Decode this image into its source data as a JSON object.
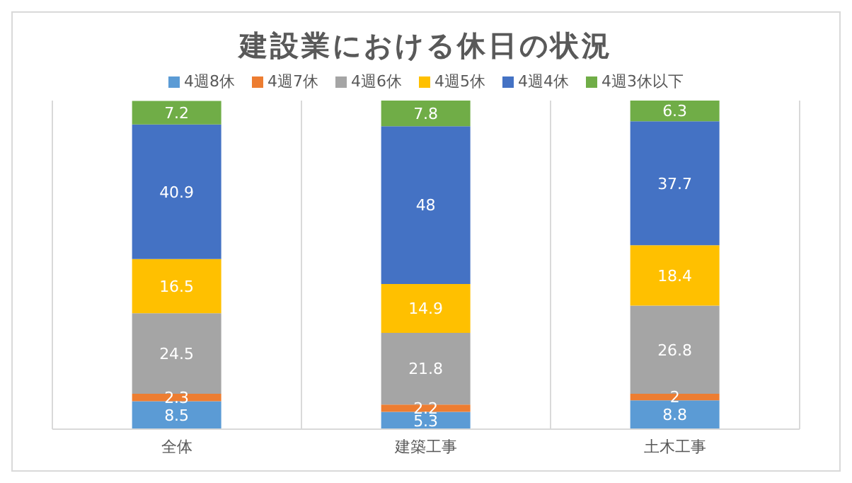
{
  "chart_data": {
    "type": "bar",
    "title": "建設業における休日の状況",
    "categories": [
      "全体",
      "建築工事",
      "土木工事"
    ],
    "stacked": true,
    "data_labels": true,
    "tick_labels": "x",
    "grid": "x",
    "legend": "top",
    "series": [
      {
        "name": "4週8休",
        "color": "#5b9bd5",
        "values": [
          8.5,
          5.3,
          8.8
        ]
      },
      {
        "name": "4週7休",
        "color": "#ed7d31",
        "values": [
          2.3,
          2.2,
          2
        ]
      },
      {
        "name": "4週6休",
        "color": "#a5a5a5",
        "values": [
          24.5,
          21.8,
          26.8
        ]
      },
      {
        "name": "4週5休",
        "color": "#ffc000",
        "values": [
          16.5,
          14.9,
          18.4
        ]
      },
      {
        "name": "4週4休",
        "color": "#4472c4",
        "values": [
          40.9,
          48,
          37.7
        ]
      },
      {
        "name": "4週3休以下",
        "color": "#70ad47",
        "values": [
          7.2,
          7.8,
          6.3
        ]
      }
    ]
  }
}
